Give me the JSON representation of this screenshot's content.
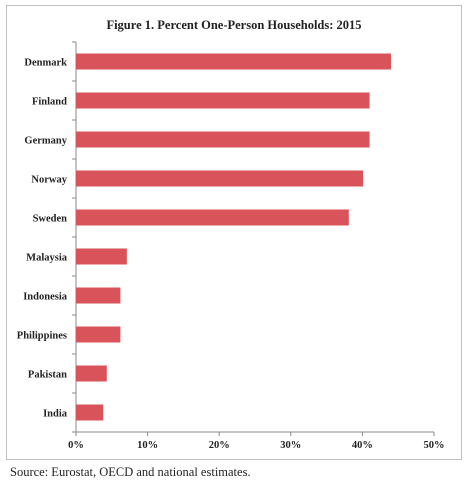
{
  "chart_data": {
    "type": "bar",
    "orientation": "horizontal",
    "title": "Figure 1. Percent One-Person Households: 2015",
    "categories": [
      "Denmark",
      "Finland",
      "Germany",
      "Norway",
      "Sweden",
      "Malaysia",
      "Indonesia",
      "Philippines",
      "Pakistan",
      "India"
    ],
    "values": [
      44.0,
      41.0,
      41.0,
      40.1,
      38.1,
      7.1,
      6.2,
      6.2,
      4.3,
      3.8
    ],
    "xlim": [
      0,
      50
    ],
    "xticks": [
      "0%",
      "10%",
      "20%",
      "30%",
      "40%",
      "50%"
    ],
    "bar_color": "#d9535a",
    "grid": false
  },
  "footer": {
    "source": "Source: Eurostat, OECD and national estimates."
  }
}
